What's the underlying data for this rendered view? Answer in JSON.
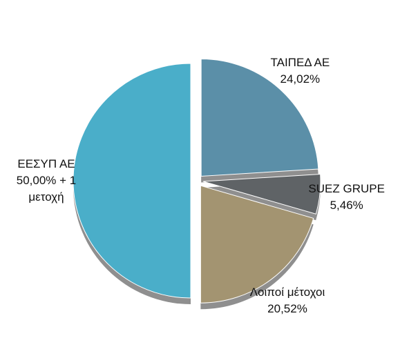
{
  "chart_data": {
    "type": "pie",
    "categories": [
      "ΤΑΙΠΕΔ ΑΕ",
      "SUEZ GRUPE",
      "Λοιποί μέτοχοι",
      "ΕΕΣΥΠ ΑΕ"
    ],
    "values": [
      24.02,
      5.46,
      20.52,
      50
    ],
    "value_labels": [
      "24,02%",
      "5,46%",
      "20,52%",
      "50,00% + 1 μετοχή"
    ],
    "colors": [
      "#5b8fa8",
      "#5f6366",
      "#a39471",
      "#4aaec9"
    ]
  }
}
